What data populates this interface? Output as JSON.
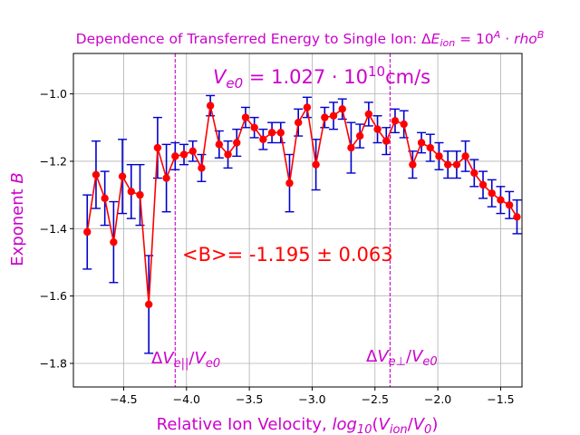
{
  "chart_data": {
    "type": "line",
    "title": "Dependence of Transferred Energy to Single Ion: ΔE_ion = 10^A · rho^B",
    "xlabel": "Relative Ion Velocity, log10(V_ion/V0)",
    "ylabel": "Exponent B",
    "xlim": [
      -4.9,
      -1.33
    ],
    "ylim": [
      -1.87,
      -0.88
    ],
    "xticks": [
      -4.5,
      -4.0,
      -3.5,
      -3.0,
      -2.5,
      -2.0,
      -1.5
    ],
    "xtick_labels": [
      "−4.5",
      "−4.0",
      "−3.5",
      "−3.0",
      "−2.5",
      "−2.0",
      "−1.5"
    ],
    "yticks": [
      -1.8,
      -1.6,
      -1.4,
      -1.2,
      -1.0
    ],
    "ytick_labels": [
      "−1.8",
      "−1.6",
      "−1.4",
      "−1.2",
      "−1.0"
    ],
    "grid": true,
    "series": [
      {
        "color": "#ff0000",
        "error_color": "#0000cc",
        "x": [
          -4.79,
          -4.72,
          -4.65,
          -4.58,
          -4.51,
          -4.44,
          -4.37,
          -4.3,
          -4.23,
          -4.16,
          -4.09,
          -4.02,
          -3.95,
          -3.88,
          -3.81,
          -3.74,
          -3.67,
          -3.6,
          -3.53,
          -3.46,
          -3.39,
          -3.32,
          -3.25,
          -3.18,
          -3.11,
          -3.04,
          -2.97,
          -2.9,
          -2.83,
          -2.76,
          -2.69,
          -2.62,
          -2.55,
          -2.48,
          -2.41,
          -2.34,
          -2.27,
          -2.2,
          -2.13,
          -2.06,
          -1.99,
          -1.92,
          -1.85,
          -1.78,
          -1.71,
          -1.64,
          -1.57,
          -1.5,
          -1.43,
          -1.37
        ],
        "y": [
          -1.41,
          -1.24,
          -1.31,
          -1.44,
          -1.245,
          -1.29,
          -1.3,
          -1.625,
          -1.16,
          -1.25,
          -1.185,
          -1.18,
          -1.17,
          -1.22,
          -1.035,
          -1.15,
          -1.18,
          -1.145,
          -1.07,
          -1.1,
          -1.135,
          -1.115,
          -1.115,
          -1.265,
          -1.085,
          -1.04,
          -1.21,
          -1.07,
          -1.065,
          -1.045,
          -1.16,
          -1.125,
          -1.06,
          -1.105,
          -1.14,
          -1.08,
          -1.09,
          -1.21,
          -1.145,
          -1.16,
          -1.185,
          -1.21,
          -1.21,
          -1.185,
          -1.235,
          -1.27,
          -1.295,
          -1.315,
          -1.33,
          -1.365
        ],
        "yerr": [
          0.11,
          0.1,
          0.08,
          0.12,
          0.11,
          0.08,
          0.09,
          0.145,
          0.09,
          0.1,
          0.04,
          0.03,
          0.03,
          0.04,
          0.03,
          0.04,
          0.04,
          0.04,
          0.03,
          0.03,
          0.03,
          0.03,
          0.03,
          0.085,
          0.04,
          0.03,
          0.075,
          0.03,
          0.04,
          0.03,
          0.075,
          0.035,
          0.035,
          0.04,
          0.04,
          0.035,
          0.04,
          0.04,
          0.03,
          0.04,
          0.04,
          0.04,
          0.04,
          0.045,
          0.04,
          0.04,
          0.04,
          0.04,
          0.04,
          0.05
        ]
      }
    ],
    "vlines": [
      {
        "x": -4.09,
        "label": "ΔV_e||/V_e0",
        "color": "#cc00cc"
      },
      {
        "x": -2.38,
        "label": "ΔV_e⊥/V_e0",
        "color": "#cc00cc"
      }
    ],
    "annotations": {
      "ve0": "V_e0 = 1.027 · 10^10 cm/s",
      "mean_b": "<B>= -1.195 ± 0.063"
    }
  }
}
